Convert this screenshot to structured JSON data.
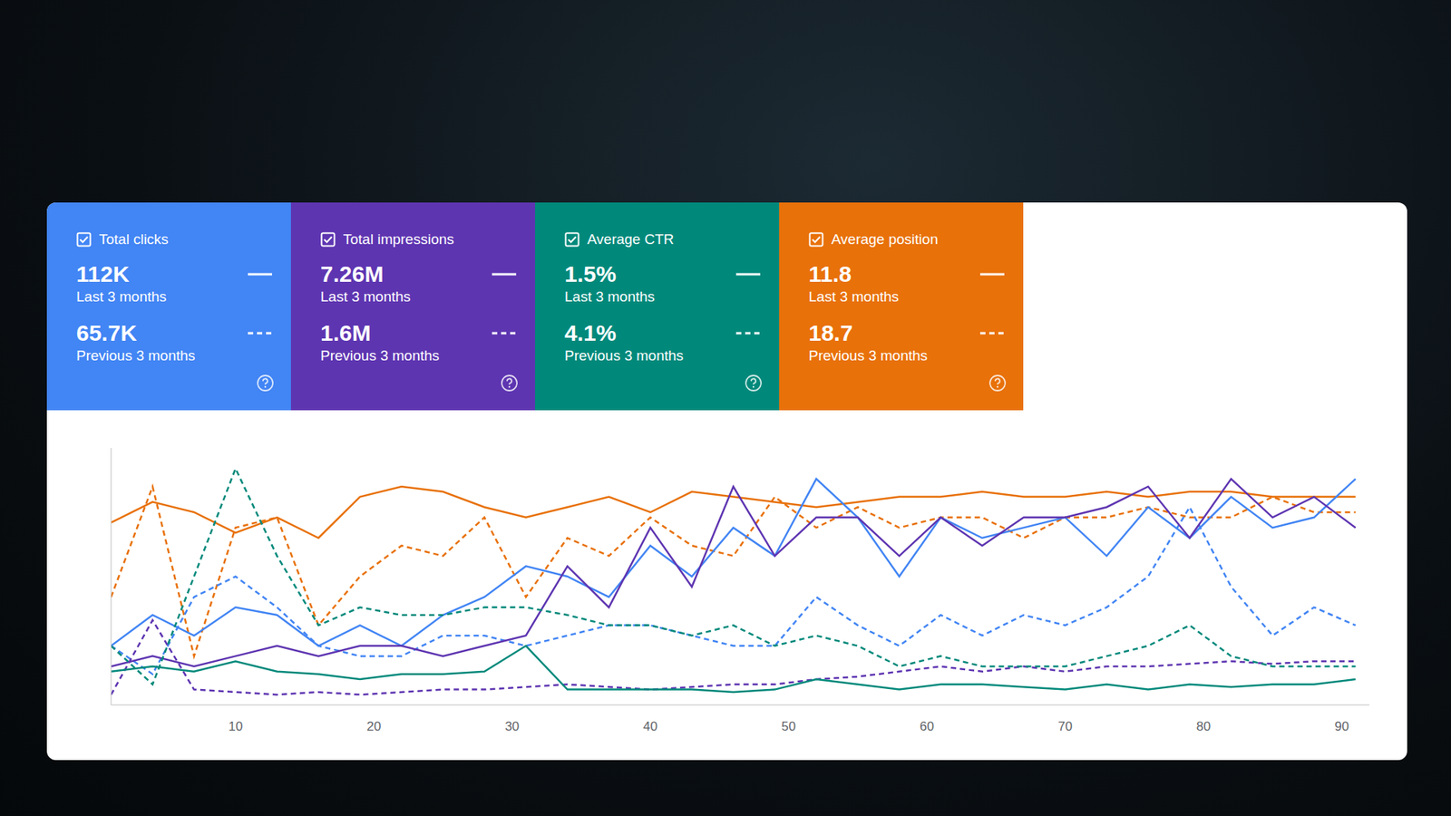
{
  "cards": [
    {
      "label": "Total clicks",
      "color": "#4285f4",
      "current": "112K",
      "current_label": "Last 3 months",
      "previous": "65.7K",
      "previous_label": "Previous 3 months"
    },
    {
      "label": "Total impressions",
      "color": "#5e35b1",
      "current": "7.26M",
      "current_label": "Last 3 months",
      "previous": "1.6M",
      "previous_label": "Previous 3 months"
    },
    {
      "label": "Average CTR",
      "color": "#00897b",
      "current": "1.5%",
      "current_label": "Last 3 months",
      "previous": "4.1%",
      "previous_label": "Previous 3 months"
    },
    {
      "label": "Average position",
      "color": "#e8710a",
      "current": "11.8",
      "current_label": "Last 3 months",
      "previous": "18.7",
      "previous_label": "Previous 3 months"
    }
  ],
  "chart_data": {
    "type": "line",
    "x": [
      1,
      4,
      7,
      10,
      13,
      16,
      19,
      22,
      25,
      28,
      31,
      34,
      37,
      40,
      43,
      46,
      49,
      52,
      55,
      58,
      61,
      64,
      67,
      70,
      73,
      76,
      79,
      82,
      85,
      88,
      91
    ],
    "xlim": [
      1,
      92
    ],
    "xticks": [
      10,
      20,
      30,
      40,
      50,
      60,
      70,
      80,
      90
    ],
    "ylim": [
      0,
      100
    ],
    "tick_labels": "x",
    "grid": false,
    "series": [
      {
        "name": "Average position",
        "color": "#e8710a",
        "line_style": "solid",
        "values": [
          71,
          79,
          75,
          67,
          73,
          65,
          81,
          85,
          83,
          77,
          73,
          77,
          81,
          75,
          83,
          81,
          79,
          77,
          79,
          81,
          81,
          83,
          81,
          81,
          83,
          81,
          83,
          83,
          81,
          81,
          81
        ]
      },
      {
        "name": "Average position",
        "color": "#e8710a",
        "line_style": "dashed",
        "values": [
          42,
          85,
          19,
          69,
          73,
          31,
          50,
          62,
          58,
          73,
          42,
          65,
          58,
          73,
          62,
          58,
          81,
          69,
          77,
          69,
          73,
          73,
          65,
          73,
          73,
          77,
          73,
          73,
          81,
          75,
          75
        ]
      },
      {
        "name": "Total clicks",
        "color": "#4285f4",
        "line_style": "solid",
        "values": [
          23,
          35,
          27,
          38,
          35,
          23,
          31,
          23,
          35,
          42,
          54,
          50,
          42,
          62,
          50,
          69,
          58,
          88,
          73,
          50,
          73,
          65,
          69,
          73,
          58,
          77,
          65,
          81,
          69,
          73,
          88
        ]
      },
      {
        "name": "Total clicks",
        "color": "#4285f4",
        "line_style": "dashed",
        "values": [
          23,
          12,
          42,
          50,
          38,
          23,
          19,
          19,
          27,
          27,
          23,
          27,
          31,
          31,
          27,
          23,
          23,
          42,
          31,
          23,
          35,
          27,
          35,
          31,
          38,
          50,
          77,
          46,
          27,
          38,
          31
        ]
      },
      {
        "name": "Total impressions",
        "color": "#5e35b1",
        "line_style": "solid",
        "values": [
          15,
          19,
          15,
          19,
          23,
          19,
          23,
          23,
          19,
          23,
          27,
          54,
          38,
          69,
          46,
          85,
          58,
          73,
          73,
          58,
          73,
          62,
          73,
          73,
          77,
          85,
          65,
          88,
          73,
          81,
          69
        ]
      },
      {
        "name": "Total impressions",
        "color": "#5e35b1",
        "line_style": "dashed",
        "values": [
          4,
          33,
          6,
          5,
          4,
          5,
          4,
          5,
          6,
          6,
          7,
          8,
          7,
          6,
          7,
          8,
          8,
          10,
          11,
          13,
          15,
          13,
          15,
          13,
          15,
          15,
          16,
          17,
          16,
          17,
          17
        ]
      },
      {
        "name": "Average CTR",
        "color": "#00897b",
        "line_style": "solid",
        "values": [
          13,
          15,
          13,
          17,
          13,
          12,
          10,
          12,
          12,
          13,
          23,
          6,
          6,
          6,
          6,
          5,
          6,
          10,
          8,
          6,
          8,
          8,
          7,
          6,
          8,
          6,
          8,
          7,
          8,
          8,
          10
        ]
      },
      {
        "name": "Average CTR",
        "color": "#00897b",
        "line_style": "dashed",
        "values": [
          23,
          8,
          50,
          92,
          58,
          31,
          38,
          35,
          35,
          38,
          38,
          35,
          31,
          31,
          27,
          31,
          23,
          27,
          23,
          15,
          19,
          15,
          15,
          15,
          19,
          23,
          31,
          19,
          15,
          15,
          15
        ]
      }
    ]
  }
}
